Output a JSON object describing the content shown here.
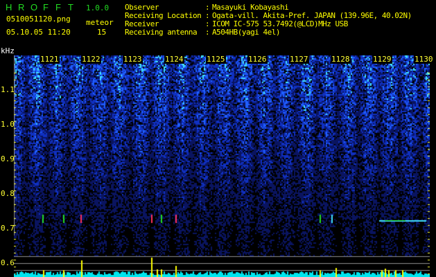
{
  "header": {
    "app_name_letters": [
      "H",
      "R",
      "O",
      "F",
      "F",
      "T"
    ],
    "version": "1.0.0",
    "filename": "0510051120.png",
    "datetime": "05.10.05 11:20",
    "meteor_label": "meteor",
    "meteor_count": "15"
  },
  "info": [
    {
      "label": "Observer",
      "sep": ":",
      "value": "Masayuki Kobayashi"
    },
    {
      "label": "Receiving Location",
      "sep": ":",
      "value": "Ogata-vill. Akita-Pref. JAPAN (139.96E, 40.02N)"
    },
    {
      "label": "Receiver",
      "sep": ":",
      "value": "ICOM IC-575 53.7492(@LCD)MHz USB"
    },
    {
      "label": "Receiving antenna",
      "sep": ":",
      "value": "A504HB(yagi 4el)"
    }
  ],
  "colors": {
    "text": "#ffff00",
    "logo": "#22dd22",
    "histogram": "#00e5ee",
    "meteor_spike": "#ffff00",
    "grid": "#909090"
  },
  "chart_data": {
    "type": "heatmap",
    "ylabel": "kHz",
    "x_ticks": [
      "1121",
      "1122",
      "1123",
      "1124",
      "1125",
      "1126",
      "1127",
      "1128",
      "1129",
      "1130"
    ],
    "y_ticks": [
      "1.1",
      "1.0",
      "0.9",
      "0.8",
      "0.7",
      "0.6"
    ],
    "ylim": [
      0.56,
      1.2
    ],
    "grid": false,
    "meteor_echoes_khz": 0.72
  }
}
